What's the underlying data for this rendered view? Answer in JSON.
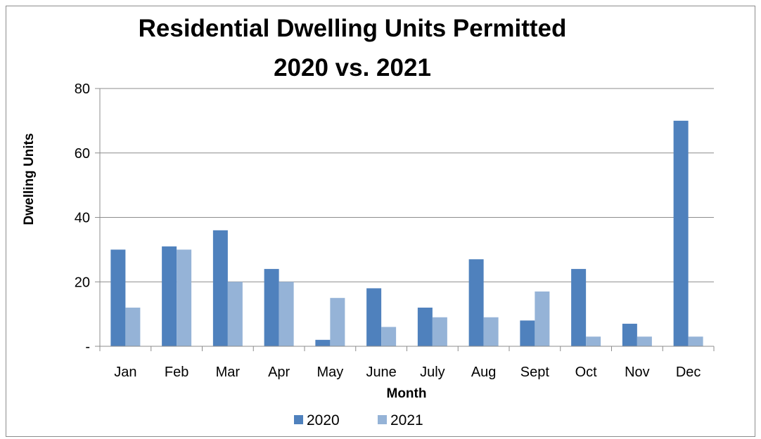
{
  "chart_data": {
    "type": "bar",
    "title_line1": "Residential Dwelling Units Permitted",
    "title_line2": "2020 vs. 2021",
    "xlabel": "Month",
    "ylabel": "Dwelling Units",
    "categories": [
      "Jan",
      "Feb",
      "Mar",
      "Apr",
      "May",
      "June",
      "July",
      "Aug",
      "Sept",
      "Oct",
      "Nov",
      "Dec"
    ],
    "series": [
      {
        "name": "2020",
        "color": "#4f81bd",
        "values": [
          30,
          31,
          36,
          24,
          2,
          18,
          12,
          27,
          8,
          24,
          7,
          70
        ]
      },
      {
        "name": "2021",
        "color": "#95b3d7",
        "values": [
          12,
          30,
          20,
          20,
          15,
          6,
          9,
          9,
          17,
          3,
          3,
          3
        ]
      }
    ],
    "ylim": [
      0,
      80
    ],
    "yticks": [
      0,
      20,
      40,
      60,
      80
    ],
    "ytick_labels": [
      "-",
      "20",
      "40",
      "60",
      "80"
    ],
    "grid": true,
    "legend_position": "bottom"
  }
}
